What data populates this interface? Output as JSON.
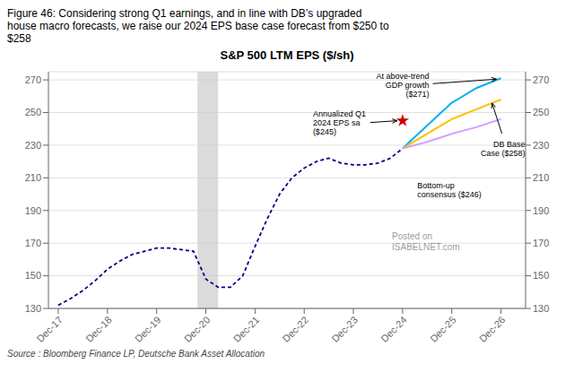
{
  "chart_data": {
    "type": "line",
    "title": "S&P 500 LTM EPS ($/sh)",
    "figure_title": "Figure 46: Considering strong Q1 earnings, and in line with DB’s upgraded\nhouse macro forecasts, we raise our 2024 EPS base case forecast from $250 to\n$258",
    "source": "Source : Bloomberg Finance LP, Deutsche Bank Asset Allocation",
    "watermark": "Posted on\nISABELNET.com",
    "series": [
      {
        "type": "line",
        "x": [
          2017,
          2017.25,
          2017.5,
          2017.75,
          2018,
          2018.25,
          2018.5,
          2018.75,
          2019,
          2019.25,
          2019.5,
          2019.75,
          2020,
          2020.25,
          2020.5,
          2020.75,
          2021,
          2021.25,
          2021.5,
          2021.75,
          2022,
          2022.25,
          2022.5,
          2022.75,
          2023,
          2023.25,
          2023.5,
          2023.75,
          2024
        ],
        "values": [
          132,
          136,
          141,
          147,
          154,
          159,
          163,
          165,
          167,
          167,
          166,
          165,
          148,
          143,
          143,
          150,
          168,
          185,
          200,
          210,
          216,
          220,
          222,
          219,
          218,
          218,
          219,
          222,
          228
        ],
        "color": "#00008b",
        "line_style": "dashed"
      },
      {
        "type": "line",
        "x": [
          2024,
          2024.5,
          2025,
          2025.5,
          2026
        ],
        "values": [
          228,
          242,
          256,
          265,
          271
        ],
        "color": "#00b0f0",
        "line_style": "solid"
      },
      {
        "type": "line",
        "x": [
          2024,
          2024.5,
          2025,
          2025.5,
          2026
        ],
        "values": [
          228,
          237,
          246,
          252,
          258
        ],
        "color": "#ffc000",
        "line_style": "solid"
      },
      {
        "type": "line",
        "x": [
          2024,
          2024.5,
          2025,
          2025.5,
          2026
        ],
        "values": [
          228,
          232,
          237,
          241,
          246
        ],
        "color": "#d4a0ff",
        "line_style": "solid"
      },
      {
        "type": "scatter",
        "x": [
          2024
        ],
        "values": [
          245
        ],
        "color": "#cc0000",
        "marker": "star"
      }
    ],
    "shaded_ranges": [
      {
        "x_start": 2019.83,
        "x_end": 2020.25,
        "color": "#cccccc"
      }
    ],
    "annotations": [
      {
        "text": "Annualized Q1\n2024 EPS sa\n($245)",
        "x": 2024,
        "y": 245
      },
      {
        "text": "At above-trend\nGDP growth\n($271)",
        "x": 2026,
        "y": 271
      },
      {
        "text": "DB Base\nCase ($258)",
        "x": 2025.8,
        "y": 258
      },
      {
        "text": "Bottom-up\nconsensus ($246)",
        "x": 2025.5,
        "y": 241
      }
    ],
    "xlim": [
      2016.8,
      2026.5
    ],
    "xticks": [
      {
        "value": 2017,
        "label": "Dec-17"
      },
      {
        "value": 2018,
        "label": "Dec-18"
      },
      {
        "value": 2019,
        "label": "Dec-19"
      },
      {
        "value": 2020,
        "label": "Dec-20"
      },
      {
        "value": 2021,
        "label": "Dec-21"
      },
      {
        "value": 2022,
        "label": "Dec-22"
      },
      {
        "value": 2023,
        "label": "Dec-23"
      },
      {
        "value": 2024,
        "label": "Dec-24"
      },
      {
        "value": 2025,
        "label": "Dec-25"
      },
      {
        "value": 2026,
        "label": "Dec-26"
      }
    ],
    "ylim": [
      130,
      275
    ],
    "yticks": [
      130,
      150,
      170,
      190,
      210,
      230,
      250,
      270
    ],
    "y2lim": [
      130,
      275
    ],
    "y2ticks": [
      130,
      150,
      170,
      190,
      210,
      230,
      250,
      270
    ],
    "grid": true
  }
}
